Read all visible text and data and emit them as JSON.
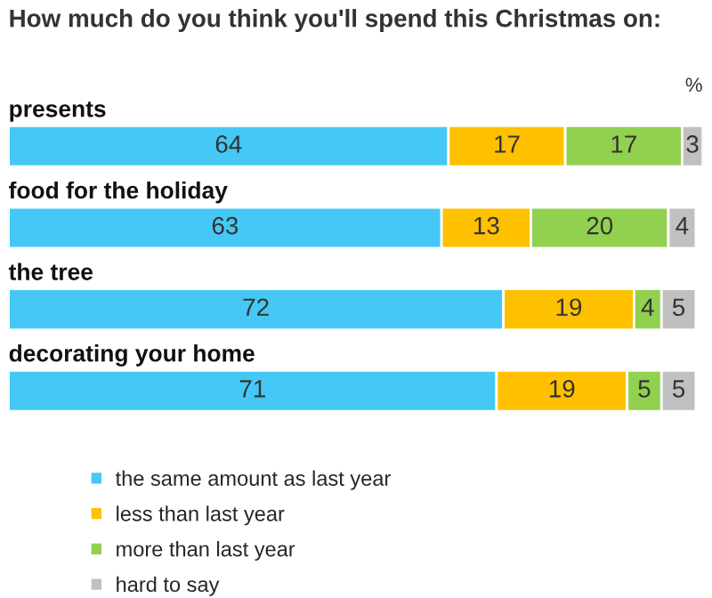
{
  "chart_data": {
    "type": "bar",
    "orientation": "horizontal",
    "stacked": true,
    "title": "How much do you think you'll spend this Christmas on:",
    "categories": [
      "presents",
      "food for the holiday",
      "the tree",
      "decorating your home"
    ],
    "series": [
      {
        "name": "the same amount as last year",
        "color": "#45c8f5",
        "values": [
          64,
          63,
          72,
          71
        ]
      },
      {
        "name": "less than last year",
        "color": "#ffc000",
        "values": [
          17,
          13,
          19,
          19
        ]
      },
      {
        "name": "more than last year",
        "color": "#92d050",
        "values": [
          17,
          20,
          4,
          5
        ]
      },
      {
        "name": "hard to say",
        "color": "#c0c0c0",
        "values": [
          3,
          4,
          5,
          5
        ]
      }
    ],
    "data_labels": true,
    "legend": "bottom",
    "annotations": [
      "%"
    ]
  }
}
